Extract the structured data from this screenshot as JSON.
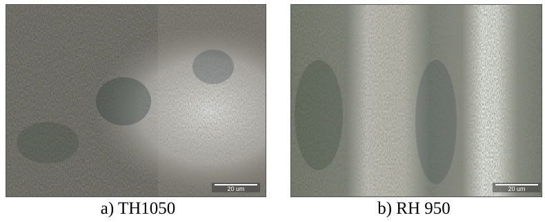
{
  "figure": {
    "panels": [
      {
        "caption": "a) TH1050",
        "scale_bar_label": "20 um"
      },
      {
        "caption": "b) RH 950",
        "scale_bar_label": "20 um"
      }
    ]
  }
}
